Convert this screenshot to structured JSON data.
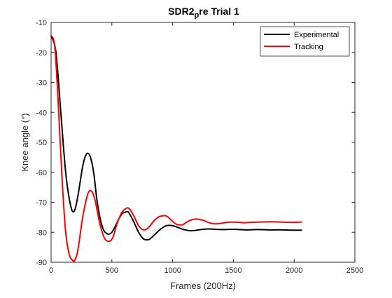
{
  "chart_data": {
    "type": "line",
    "title": {
      "main": "SDR2",
      "subscript": "p",
      "rest": "re Trial 1"
    },
    "xlabel": "Frames (200Hz)",
    "ylabel": "Knee angle (°)",
    "xlim": [
      0,
      2500
    ],
    "ylim": [
      -90,
      -10
    ],
    "xticks": [
      0,
      500,
      1000,
      1500,
      2000,
      2500
    ],
    "yticks": [
      -90,
      -80,
      -70,
      -60,
      -50,
      -40,
      -30,
      -20,
      -10
    ],
    "legend_position": "top-right",
    "box": true,
    "grid": false,
    "series": [
      {
        "name": "Experimental",
        "color": "#000000",
        "x": [
          0,
          40,
          80,
          120,
          160,
          190,
          220,
          260,
          290,
          320,
          350,
          380,
          420,
          460,
          500,
          540,
          580,
          620,
          640,
          680,
          720,
          760,
          800,
          820,
          860,
          900,
          950,
          1000,
          1050,
          1100,
          1150,
          1200,
          1250,
          1300,
          1400,
          1500,
          1600,
          1700,
          1800,
          1900,
          2000,
          2060
        ],
        "y": [
          -14.5,
          -20,
          -40,
          -60,
          -71,
          -73,
          -68,
          -58,
          -54,
          -54.5,
          -60,
          -70,
          -78,
          -80.5,
          -80,
          -77,
          -74,
          -73.2,
          -73.5,
          -76.5,
          -80,
          -82.2,
          -82.5,
          -82,
          -80.5,
          -79,
          -77.8,
          -77.8,
          -78.5,
          -79.2,
          -79.5,
          -79.3,
          -79,
          -78.9,
          -79.1,
          -79,
          -79.2,
          -79.1,
          -79.2,
          -79.2,
          -79.3,
          -79.3
        ]
      },
      {
        "name": "Tracking",
        "color": "#ff0000",
        "x": [
          0,
          30,
          60,
          90,
          120,
          150,
          180,
          195,
          220,
          260,
          300,
          330,
          360,
          400,
          440,
          480,
          510,
          540,
          580,
          620,
          645,
          680,
          720,
          760,
          800,
          840,
          880,
          920,
          950,
          990,
          1030,
          1080,
          1120,
          1160,
          1200,
          1250,
          1300,
          1350,
          1400,
          1450,
          1500,
          1550,
          1600,
          1700,
          1800,
          1900,
          2000,
          2060
        ],
        "y": [
          -14.5,
          -18,
          -38,
          -62,
          -80,
          -87.5,
          -89.5,
          -89.3,
          -86,
          -75,
          -67.5,
          -66.2,
          -69,
          -77,
          -82,
          -83,
          -81.5,
          -77.5,
          -73.5,
          -72,
          -72.2,
          -74.5,
          -77.8,
          -79.2,
          -78.5,
          -76.5,
          -75,
          -74.5,
          -74.6,
          -76,
          -77.3,
          -77.5,
          -76.5,
          -75.8,
          -75.6,
          -76,
          -76.8,
          -77.2,
          -77,
          -76.7,
          -76.6,
          -76.7,
          -76.8,
          -76.6,
          -76.5,
          -76.6,
          -76.7,
          -76.6
        ]
      }
    ]
  }
}
